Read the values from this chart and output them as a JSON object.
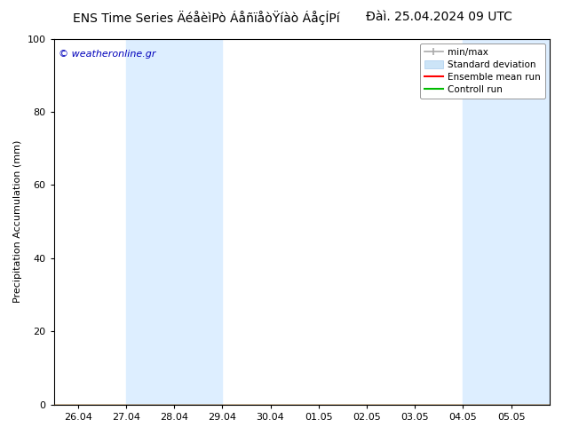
{
  "title_left": "ENS Time Series ÄéåèìPò ÁåñïåòŸíàò ÁåçÍPí",
  "title_right": "Đàì. 25.04.2024 09 UTC",
  "ylabel": "Precipitation Accumulation (mm)",
  "watermark": "© weatheronline.gr",
  "ylim": [
    0,
    100
  ],
  "yticks": [
    0,
    20,
    40,
    60,
    80,
    100
  ],
  "xtick_labels": [
    "26.04",
    "27.04",
    "28.04",
    "29.04",
    "30.04",
    "01.05",
    "02.05",
    "03.05",
    "04.05",
    "05.05"
  ],
  "shaded_regions": [
    {
      "x_start_label": "27.04",
      "x_end_label": "29.04",
      "color": "#ddeeff"
    },
    {
      "x_start_label": "04.05",
      "x_end_label": "05.05+",
      "color": "#ddeeff"
    }
  ],
  "bg_color": "#ffffff",
  "plot_bg_color": "#ffffff",
  "title_fontsize": 10,
  "tick_fontsize": 8,
  "label_fontsize": 8,
  "watermark_color": "#0000bb",
  "border_color": "#000000",
  "legend_fontsize": 7.5
}
